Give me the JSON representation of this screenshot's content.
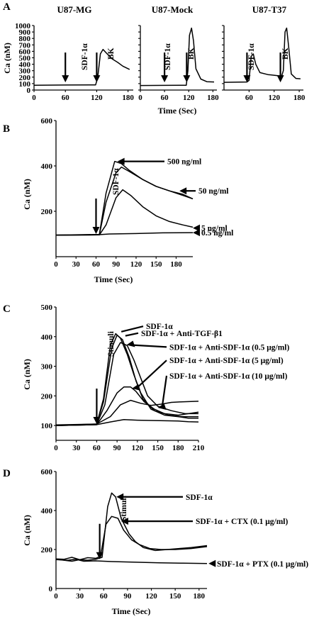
{
  "chart_data": [
    {
      "panel": "A",
      "type": "line",
      "ylabel": "Ca (nM)",
      "xlabel": "Time (Sec)",
      "yticks": [
        0,
        100,
        200,
        300,
        400,
        500,
        600,
        700,
        800,
        900,
        1000
      ],
      "ylim": [
        0,
        1000
      ],
      "subplots": [
        {
          "title": "U87-MG",
          "xticks": [
            0,
            60,
            120,
            180
          ],
          "xlim": [
            0,
            190
          ],
          "annotations": [
            {
              "text": "SDF-1α",
              "x": 60,
              "y": 120
            },
            {
              "text": "BK",
              "x": 120,
              "y": 120
            }
          ],
          "series": [
            {
              "points": [
                [
                  0,
                  75
                ],
                [
                  60,
                  78
                ],
                [
                  118,
                  80
                ],
                [
                  122,
                  200
                ],
                [
                  127,
                  560
                ],
                [
                  132,
                  630
                ],
                [
                  140,
                  560
                ],
                [
                  150,
                  480
                ],
                [
                  160,
                  430
                ],
                [
                  170,
                  370
                ],
                [
                  183,
                  320
                ]
              ]
            }
          ]
        },
        {
          "title": "U87-Mock",
          "xticks": [
            0,
            60,
            120,
            180
          ],
          "xlim": [
            0,
            190
          ],
          "annotations": [
            {
              "text": "SDF-1α",
              "x": 60,
              "y": 120
            },
            {
              "text": "BK",
              "x": 115,
              "y": 120
            }
          ],
          "series": [
            {
              "points": [
                [
                  0,
                  70
                ],
                [
                  60,
                  72
                ],
                [
                  114,
                  75
                ],
                [
                  118,
                  300
                ],
                [
                  122,
                  850
                ],
                [
                  127,
                  960
                ],
                [
                  132,
                  760
                ],
                [
                  138,
                  330
                ],
                [
                  150,
                  170
                ],
                [
                  165,
                  130
                ],
                [
                  183,
                  125
                ]
              ]
            }
          ]
        },
        {
          "title": "U87-T37",
          "xticks": [
            60,
            120,
            180
          ],
          "xlim": [
            0,
            190
          ],
          "annotations": [
            {
              "text": "SDF-1α",
              "x": 55,
              "y": 120
            },
            {
              "text": "BK",
              "x": 135,
              "y": 120
            }
          ],
          "series": [
            {
              "points": [
                [
                  0,
                  120
                ],
                [
                  55,
                  125
                ],
                [
                  60,
                  150
                ],
                [
                  65,
                  520
                ],
                [
                  70,
                  560
                ],
                [
                  76,
                  400
                ],
                [
                  86,
                  270
                ],
                [
                  105,
                  240
                ],
                [
                  125,
                  225
                ],
                [
                  138,
                  215
                ],
                [
                  142,
                  300
                ],
                [
                  146,
                  900
                ],
                [
                  150,
                  960
                ],
                [
                  155,
                  650
                ],
                [
                  161,
                  250
                ],
                [
                  172,
                  180
                ],
                [
                  183,
                  175
                ]
              ]
            }
          ]
        }
      ]
    },
    {
      "panel": "B",
      "type": "line",
      "ylabel": "Ca (nM)",
      "xlabel": "Time (Sec)",
      "xticks": [
        0,
        30,
        60,
        90,
        120,
        150,
        180
      ],
      "yticks": [
        200,
        400,
        600
      ],
      "xlim": [
        0,
        205
      ],
      "ylim": [
        0,
        600
      ],
      "annotations": [
        {
          "text": "SDF-1α",
          "x": 60,
          "y": 220
        }
      ],
      "series": [
        {
          "name": "500 ng/ml",
          "points": [
            [
              0,
              95
            ],
            [
              65,
              98
            ],
            [
              75,
              280
            ],
            [
              88,
              420
            ],
            [
              98,
              410
            ],
            [
              110,
              380
            ],
            [
              130,
              340
            ],
            [
              150,
              310
            ],
            [
              170,
              290
            ],
            [
              190,
              275
            ],
            [
              205,
              255
            ]
          ]
        },
        {
          "name": "50 ng/ml",
          "points": [
            [
              0,
              95
            ],
            [
              65,
              97
            ],
            [
              75,
              240
            ],
            [
              90,
              370
            ],
            [
              98,
              395
            ],
            [
              110,
              375
            ],
            [
              130,
              340
            ],
            [
              150,
              310
            ],
            [
              170,
              290
            ],
            [
              190,
              270
            ],
            [
              205,
              255
            ]
          ]
        },
        {
          "name": "5 ng/ml",
          "points": [
            [
              0,
              95
            ],
            [
              65,
              96
            ],
            [
              75,
              140
            ],
            [
              90,
              260
            ],
            [
              100,
              295
            ],
            [
              112,
              270
            ],
            [
              130,
              220
            ],
            [
              150,
              180
            ],
            [
              170,
              155
            ],
            [
              190,
              140
            ],
            [
              205,
              130
            ]
          ]
        },
        {
          "name": "0.5 ng/ml",
          "points": [
            [
              0,
              95
            ],
            [
              60,
              96
            ],
            [
              80,
              100
            ],
            [
              120,
              102
            ],
            [
              160,
              105
            ],
            [
              205,
              106
            ]
          ]
        }
      ]
    },
    {
      "panel": "C",
      "type": "line",
      "ylabel": "Ca (nM)",
      "xticks": [
        0,
        30,
        60,
        90,
        120,
        150,
        180,
        210
      ],
      "yticks": [
        100,
        200,
        300,
        400,
        500
      ],
      "xlim": [
        0,
        210
      ],
      "ylim": [
        50,
        500
      ],
      "annotations": [
        {
          "text": "Stimuli",
          "x": 60,
          "y": 220
        }
      ],
      "series": [
        {
          "name": "SDF-1α",
          "points": [
            [
              0,
              100
            ],
            [
              60,
              105
            ],
            [
              70,
              190
            ],
            [
              80,
              370
            ],
            [
              88,
              410
            ],
            [
              95,
              395
            ],
            [
              105,
              340
            ],
            [
              115,
              270
            ],
            [
              125,
              210
            ],
            [
              140,
              155
            ],
            [
              160,
              135
            ],
            [
              180,
              130
            ],
            [
              195,
              125
            ],
            [
              210,
              125
            ]
          ]
        },
        {
          "name": "SDF-1α + Anti-TGF-β1",
          "points": [
            [
              0,
              100
            ],
            [
              60,
              104
            ],
            [
              70,
              180
            ],
            [
              82,
              360
            ],
            [
              90,
              405
            ],
            [
              98,
              390
            ],
            [
              108,
              330
            ],
            [
              118,
              250
            ],
            [
              128,
              190
            ],
            [
              145,
              150
            ],
            [
              160,
              140
            ],
            [
              180,
              135
            ],
            [
              210,
              145
            ]
          ]
        },
        {
          "name": "SDF-1α + Anti-SDF-1α (0.5 μg/ml)",
          "points": [
            [
              0,
              100
            ],
            [
              60,
              103
            ],
            [
              72,
              170
            ],
            [
              85,
              340
            ],
            [
              95,
              380
            ],
            [
              105,
              370
            ],
            [
              115,
              320
            ],
            [
              125,
              260
            ],
            [
              135,
              200
            ],
            [
              150,
              165
            ],
            [
              170,
              150
            ],
            [
              190,
              140
            ],
            [
              210,
              140
            ]
          ]
        },
        {
          "name": "SDF-1α + Anti-SDF-1α (5 μg/ml)",
          "points": [
            [
              0,
              100
            ],
            [
              60,
              103
            ],
            [
              75,
              150
            ],
            [
              90,
              210
            ],
            [
              100,
              230
            ],
            [
              110,
              230
            ],
            [
              118,
              215
            ],
            [
              130,
              180
            ],
            [
              145,
              155
            ],
            [
              165,
              135
            ],
            [
              185,
              130
            ],
            [
              210,
              130
            ]
          ]
        },
        {
          "name": "SDF-1α + Anti-SDF-1α (10 μg/ml)",
          "points": [
            [
              0,
              100
            ],
            [
              60,
              103
            ],
            [
              80,
              112
            ],
            [
              100,
              120
            ],
            [
              120,
              118
            ],
            [
              140,
              117
            ],
            [
              160,
              116
            ],
            [
              180,
              115
            ],
            [
              195,
              113
            ],
            [
              210,
              112
            ]
          ]
        },
        {
          "name": "",
          "points": [
            [
              0,
              102
            ],
            [
              60,
              105
            ],
            [
              80,
              130
            ],
            [
              95,
              170
            ],
            [
              110,
              185
            ],
            [
              125,
              175
            ],
            [
              140,
              168
            ],
            [
              155,
              172
            ],
            [
              170,
              178
            ],
            [
              185,
              180
            ],
            [
              210,
              182
            ]
          ]
        }
      ]
    },
    {
      "panel": "D",
      "type": "line",
      "ylabel": "Ca (nM)",
      "xlabel": "Time (Sec)",
      "xticks": [
        0,
        30,
        60,
        90,
        120,
        150,
        180
      ],
      "yticks": [
        200,
        400,
        600
      ],
      "xlim": [
        0,
        190
      ],
      "ylim": [
        0,
        600
      ],
      "annotations": [
        {
          "text": "Stimuli",
          "x": 55,
          "y": 230
        }
      ],
      "series": [
        {
          "name": "SDF-1α",
          "points": [
            [
              0,
              150
            ],
            [
              20,
              140
            ],
            [
              30,
              148
            ],
            [
              40,
              145
            ],
            [
              50,
              150
            ],
            [
              58,
              160
            ],
            [
              65,
              420
            ],
            [
              70,
              490
            ],
            [
              75,
              470
            ],
            [
              82,
              360
            ],
            [
              92,
              280
            ],
            [
              100,
              240
            ],
            [
              110,
              210
            ],
            [
              125,
              195
            ],
            [
              140,
              200
            ],
            [
              155,
              205
            ],
            [
              170,
              210
            ],
            [
              190,
              220
            ]
          ]
        },
        {
          "name": "SDF-1α + CTX (0.1 μg/ml)",
          "points": [
            [
              0,
              152
            ],
            [
              10,
              150
            ],
            [
              20,
              160
            ],
            [
              30,
              148
            ],
            [
              40,
              158
            ],
            [
              50,
              155
            ],
            [
              56,
              165
            ],
            [
              63,
              330
            ],
            [
              70,
              370
            ],
            [
              78,
              360
            ],
            [
              85,
              300
            ],
            [
              95,
              250
            ],
            [
              105,
              225
            ],
            [
              118,
              205
            ],
            [
              132,
              200
            ],
            [
              150,
              200
            ],
            [
              170,
              205
            ],
            [
              190,
              215
            ]
          ]
        },
        {
          "name": "SDF-1α + PTX (0.1 μg/ml)",
          "points": [
            [
              0,
              148
            ],
            [
              15,
              145
            ],
            [
              25,
              150
            ],
            [
              35,
              140
            ],
            [
              50,
              142
            ],
            [
              70,
              138
            ],
            [
              100,
              135
            ],
            [
              130,
              132
            ],
            [
              160,
              130
            ],
            [
              190,
              128
            ]
          ]
        }
      ]
    }
  ],
  "labels": {
    "A": {
      "letter": "A",
      "titles": [
        "U87-MG",
        "U87-Mock",
        "U87-T37"
      ],
      "ylabel": "Ca (nM)",
      "xlabel": "Time (Sec)",
      "stim1": "SDF-1α",
      "stim2": "BK"
    },
    "B": {
      "letter": "B",
      "ylabel": "Ca (nM)",
      "xlabel": "Time (Sec)",
      "stim": "SDF-1α"
    },
    "C": {
      "letter": "C",
      "ylabel": "Ca (nM)",
      "stim": "Stimuli"
    },
    "D": {
      "letter": "D",
      "ylabel": "Ca (nM)",
      "xlabel": "Time (Sec)",
      "stim": "Stimuli"
    }
  }
}
